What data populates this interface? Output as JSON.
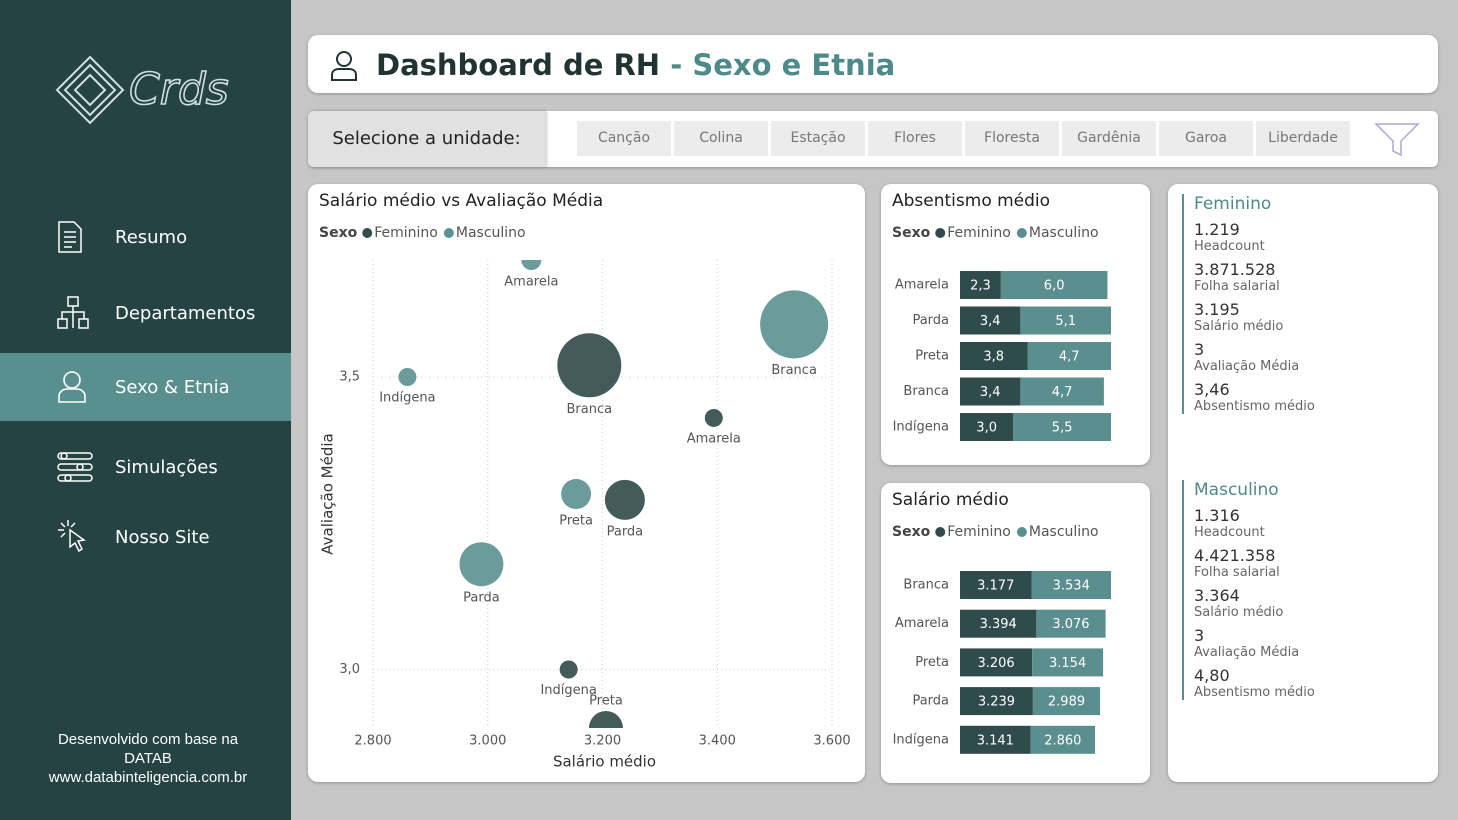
{
  "sidebar": {
    "logo": "Crds",
    "nav": [
      "Resumo",
      "Departamentos",
      "Sexo & Etnia",
      "Simulações",
      "Nosso Site"
    ],
    "footer": [
      "Desenvolvido com base na",
      "DATAB",
      "www.databinteligencia.com.br"
    ]
  },
  "header": {
    "title": "Dashboard de RH",
    "subtitle": "- Sexo e Etnia"
  },
  "filter": {
    "label": "Selecione a unidade:",
    "options": [
      "Canção",
      "Colina",
      "Estação",
      "Flores",
      "Floresta",
      "Gardênia",
      "Garoa",
      "Liberdade"
    ]
  },
  "chart_data": [
    {
      "type": "scatter",
      "title": "Salário médio vs Avaliação Média",
      "legend_title": "Sexo",
      "x_label": "Salário médio",
      "y_label": "Avaliação Média",
      "xlim": [
        2800,
        3600
      ],
      "xticks": [
        {
          "value": 2800,
          "label": "2.800"
        },
        {
          "value": 3000,
          "label": "3.000"
        },
        {
          "value": 3200,
          "label": "3.200"
        },
        {
          "value": 3400,
          "label": "3.400"
        },
        {
          "value": 3600,
          "label": "3.600"
        }
      ],
      "ylim": [
        2.9,
        3.7
      ],
      "yticks": [
        {
          "value": 3,
          "label": "3,0"
        },
        {
          "value": 3.5,
          "label": "3,5"
        }
      ],
      "grid": true,
      "series": [
        {
          "name": "Feminino",
          "color": "#334d4d",
          "labels": [
            "Branca",
            "Amarela",
            "Parda",
            "Indígena",
            "Preta"
          ],
          "x": [
            3177,
            3394,
            3239,
            3141,
            3206
          ],
          "values": [
            3.52,
            3.43,
            3.29,
            3.0,
            2.9
          ],
          "sizes": [
            32,
            9,
            20,
            9,
            17
          ]
        },
        {
          "name": "Masculino",
          "color": "#5e9393",
          "labels": [
            "Amarela",
            "Branca",
            "Indígena",
            "Preta",
            "Parda"
          ],
          "x": [
            3076,
            3534,
            2860,
            3154,
            2989
          ],
          "values": [
            3.7,
            3.59,
            3.5,
            3.3,
            3.18
          ],
          "sizes": [
            10,
            34,
            9,
            15,
            22
          ]
        }
      ]
    },
    {
      "type": "bar",
      "title": "Absentismo médio",
      "legend_title": "Sexo",
      "categories": [
        "Amarela",
        "Parda",
        "Preta",
        "Branca",
        "Indígena"
      ],
      "series": [
        {
          "name": "Feminino",
          "color": "#2f4b4b",
          "values": [
            2.3,
            3.4,
            3.8,
            3.4,
            3.0
          ],
          "value_labels": [
            "2,3",
            "3,4",
            "3,8",
            "3,4",
            "3,0"
          ]
        },
        {
          "name": "Masculino",
          "color": "#5b8e8e",
          "values": [
            6.0,
            5.1,
            4.7,
            4.7,
            5.5
          ],
          "value_labels": [
            "6,0",
            "5,1",
            "4,7",
            "4,7",
            "5,5"
          ]
        }
      ]
    },
    {
      "type": "bar",
      "title": "Salário médio",
      "legend_title": "Sexo",
      "categories": [
        "Branca",
        "Amarela",
        "Preta",
        "Parda",
        "Indígena"
      ],
      "series": [
        {
          "name": "Feminino",
          "color": "#2f4b4b",
          "values": [
            3177,
            3394,
            3206,
            3239,
            3141
          ],
          "value_labels": [
            "3.177",
            "3.394",
            "3.206",
            "3.239",
            "3.141"
          ]
        },
        {
          "name": "Masculino",
          "color": "#5b8e8e",
          "values": [
            3534,
            3076,
            3154,
            2989,
            2860
          ],
          "value_labels": [
            "3.534",
            "3.076",
            "3.154",
            "2.989",
            "2.860"
          ]
        }
      ]
    }
  ],
  "cards": [
    {
      "title": "Feminino",
      "items": [
        {
          "value": "1.219",
          "label": "Headcount"
        },
        {
          "value": "3.871.528",
          "label": "Folha salarial"
        },
        {
          "value": "3.195",
          "label": "Salário médio"
        },
        {
          "value": "3",
          "label": "Avaliação Média"
        },
        {
          "value": "3,46",
          "label": "Absentismo médio"
        }
      ]
    },
    {
      "title": "Masculino",
      "items": [
        {
          "value": "1.316",
          "label": "Headcount"
        },
        {
          "value": "4.421.358",
          "label": "Folha salarial"
        },
        {
          "value": "3.364",
          "label": "Salário médio"
        },
        {
          "value": "3",
          "label": "Avaliação Média"
        },
        {
          "value": "4,80",
          "label": "Absentismo médio"
        }
      ]
    }
  ]
}
